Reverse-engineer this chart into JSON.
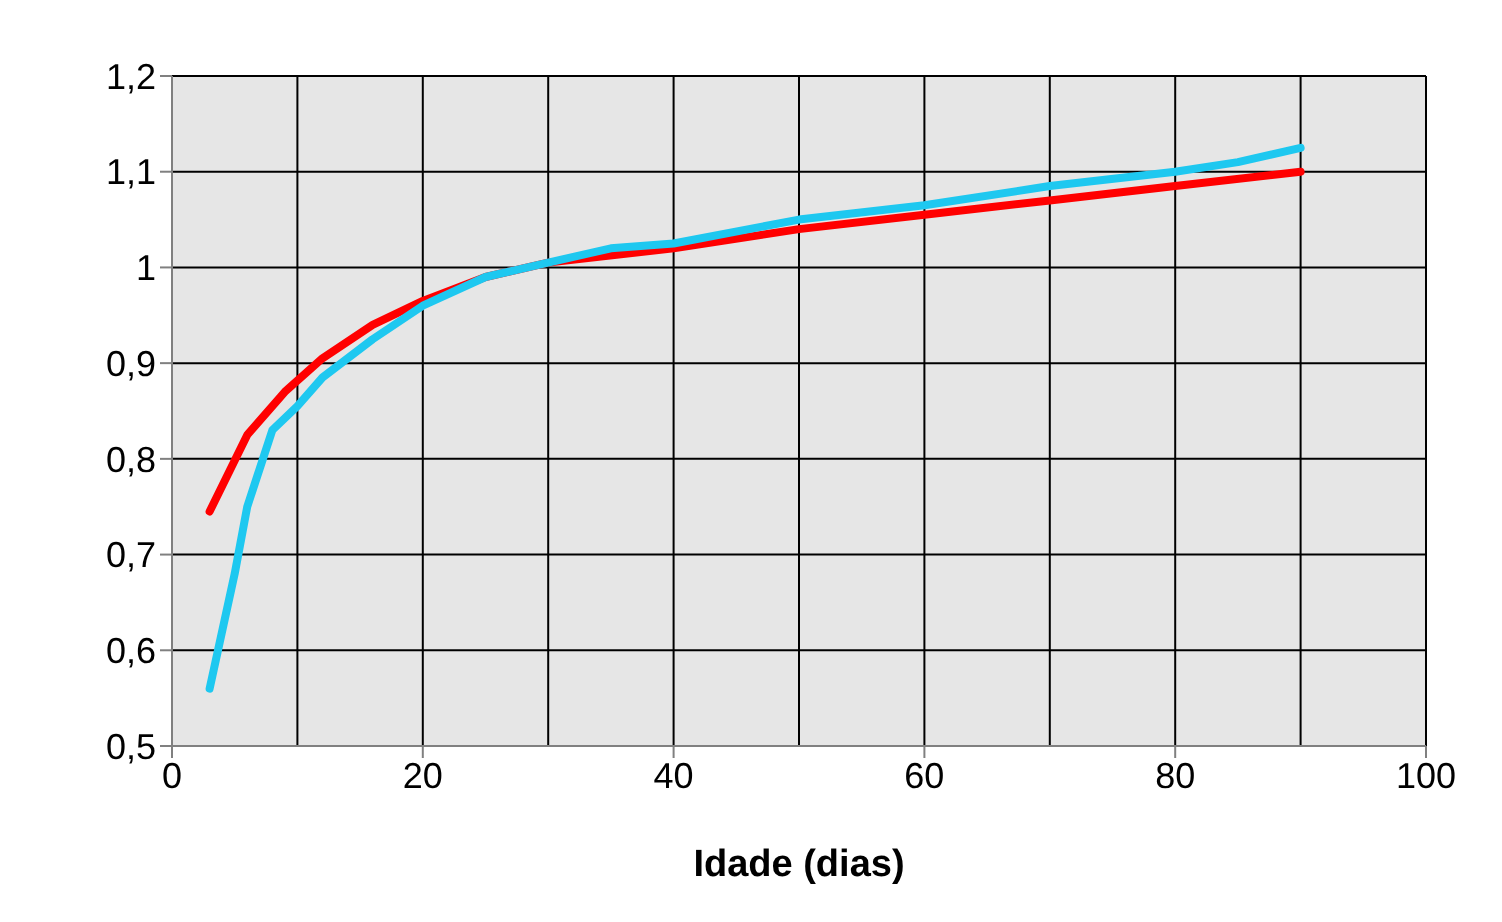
{
  "chart_data": {
    "type": "line",
    "xlabel": "Idade (dias)",
    "xlim": [
      0,
      100
    ],
    "xticks": [
      0,
      20,
      40,
      60,
      80,
      100
    ],
    "ylim": [
      0.5,
      1.2
    ],
    "yticks": [
      {
        "value": 0.5,
        "label": "0,5"
      },
      {
        "value": 0.6,
        "label": "0,6"
      },
      {
        "value": 0.7,
        "label": "0,7"
      },
      {
        "value": 0.8,
        "label": "0,8"
      },
      {
        "value": 0.9,
        "label": "0,9"
      },
      {
        "value": 1,
        "label": "1"
      },
      {
        "value": 1.1,
        "label": "1,1"
      },
      {
        "value": 1.2,
        "label": "1,2"
      }
    ],
    "grid": true,
    "legend": false,
    "marker": "none",
    "series": [
      {
        "color": "#ff0000",
        "x": [
          3,
          6,
          9,
          12,
          16,
          20,
          25,
          30,
          40,
          50,
          60,
          70,
          80,
          90
        ],
        "values": [
          0.745,
          0.825,
          0.87,
          0.905,
          0.94,
          0.965,
          0.99,
          1.005,
          1.02,
          1.04,
          1.055,
          1.07,
          1.085,
          1.1
        ]
      },
      {
        "color": "#1ec8f0",
        "x": [
          3,
          5,
          6,
          8,
          10,
          12,
          16,
          20,
          25,
          30,
          35,
          40,
          50,
          60,
          70,
          80,
          85,
          90
        ],
        "values": [
          0.56,
          0.68,
          0.75,
          0.83,
          0.855,
          0.885,
          0.925,
          0.96,
          0.99,
          1.005,
          1.02,
          1.025,
          1.05,
          1.065,
          1.085,
          1.1,
          1.11,
          1.125
        ]
      }
    ]
  }
}
